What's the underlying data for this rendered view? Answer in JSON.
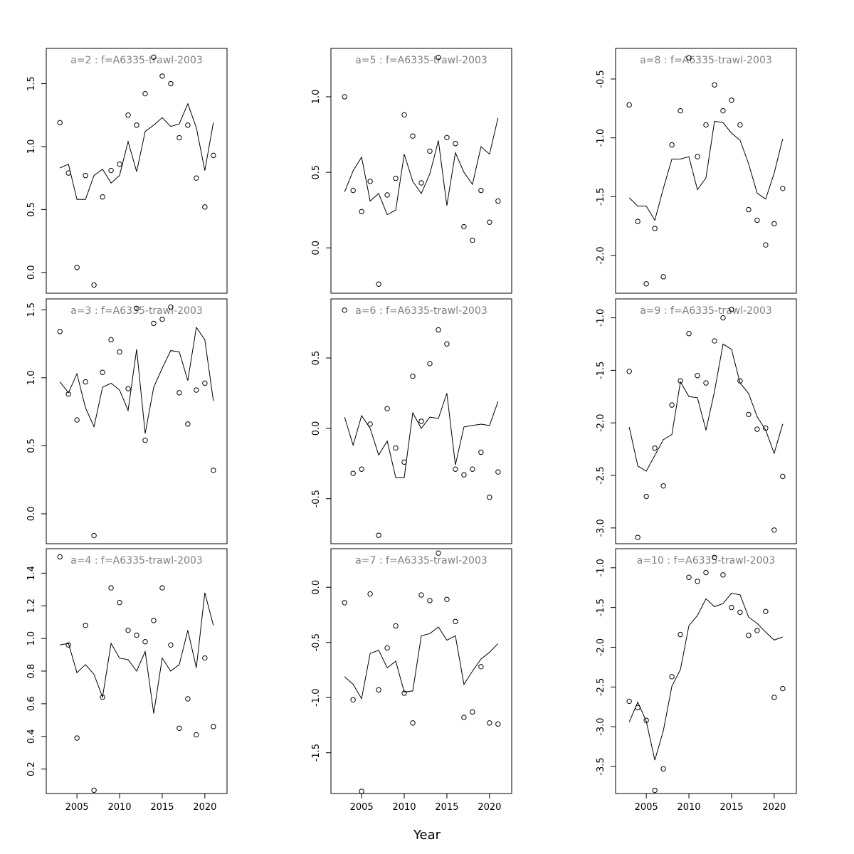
{
  "chart_data": {
    "type": "scatter",
    "xlabel": "Year",
    "years": [
      2003,
      2004,
      2005,
      2006,
      2007,
      2008,
      2009,
      2010,
      2011,
      2012,
      2013,
      2014,
      2015,
      2016,
      2017,
      2018,
      2019,
      2020,
      2021
    ],
    "x_ticks": [
      2005,
      2010,
      2015,
      2020
    ],
    "xlim": [
      2001.4,
      2022.6
    ],
    "style": {
      "line_color": "#000000",
      "point_color": "#000000",
      "title_color": "#808080"
    },
    "panels": [
      {
        "title": "a=2  :  f=A6335-trawl-2003",
        "ylim": [
          -0.165,
          1.78
        ],
        "yticks": [
          0.0,
          0.5,
          1.0,
          1.5
        ],
        "tick_labels": [
          "0.0",
          "0.5",
          "1.0",
          "1.5"
        ],
        "series": [
          {
            "type": "line",
            "values": [
              0.83,
              0.86,
              0.58,
              0.58,
              0.77,
              0.82,
              0.71,
              0.77,
              1.04,
              0.8,
              1.12,
              1.17,
              1.23,
              1.16,
              1.18,
              1.34,
              1.15,
              0.81,
              1.19
            ]
          },
          {
            "type": "points",
            "values": [
              1.19,
              0.79,
              0.04,
              0.77,
              -0.1,
              0.6,
              0.81,
              0.86,
              1.25,
              1.17,
              1.42,
              1.71,
              1.56,
              1.5,
              1.07,
              1.17,
              0.75,
              0.52,
              0.93
            ]
          }
        ]
      },
      {
        "title": "a=5  :  f=A6335-trawl-2003",
        "ylim": [
          -0.3,
          1.32
        ],
        "yticks": [
          0.0,
          0.5,
          1.0
        ],
        "tick_labels": [
          "0.0",
          "0.5",
          "1.0"
        ],
        "series": [
          {
            "type": "line",
            "values": [
              0.37,
              0.51,
              0.6,
              0.31,
              0.36,
              0.22,
              0.25,
              0.62,
              0.44,
              0.36,
              0.49,
              0.71,
              0.28,
              0.63,
              0.5,
              0.42,
              0.67,
              0.62,
              0.86
            ]
          },
          {
            "type": "points",
            "values": [
              1.0,
              0.38,
              0.24,
              0.44,
              -0.24,
              0.35,
              0.46,
              0.88,
              0.74,
              0.43,
              0.64,
              1.26,
              0.73,
              0.69,
              0.14,
              0.05,
              0.38,
              0.17,
              0.31
            ]
          }
        ]
      },
      {
        "title": "a=8  :  f=A6335-trawl-2003",
        "ylim": [
          -2.32,
          -0.24
        ],
        "yticks": [
          -2.0,
          -1.5,
          -1.0,
          -0.5
        ],
        "tick_labels": [
          "-2.0",
          "-1.5",
          "-1.0",
          "-0.5"
        ],
        "series": [
          {
            "type": "line",
            "values": [
              -1.51,
              -1.58,
              -1.58,
              -1.7,
              -1.43,
              -1.18,
              -1.18,
              -1.16,
              -1.44,
              -1.34,
              -0.86,
              -0.87,
              -0.96,
              -1.02,
              -1.22,
              -1.47,
              -1.52,
              -1.3,
              -1.01
            ]
          },
          {
            "type": "points",
            "values": [
              -0.72,
              -1.71,
              -2.24,
              -1.77,
              -2.18,
              -1.06,
              -0.77,
              -0.32,
              -1.16,
              -0.89,
              -0.55,
              -0.77,
              -0.68,
              -0.89,
              -1.61,
              -1.7,
              -1.91,
              -1.73,
              -1.43
            ]
          }
        ]
      },
      {
        "title": "a=3  :  f=A6335-trawl-2003",
        "ylim": [
          -0.22,
          1.58
        ],
        "yticks": [
          0.0,
          0.5,
          1.0,
          1.5
        ],
        "tick_labels": [
          "0.0",
          "0.5",
          "1.0",
          "1.5"
        ],
        "series": [
          {
            "type": "line",
            "values": [
              0.97,
              0.89,
              1.03,
              0.78,
              0.64,
              0.93,
              0.96,
              0.91,
              0.76,
              1.21,
              0.59,
              0.93,
              1.07,
              1.2,
              1.19,
              0.98,
              1.37,
              1.28,
              0.83
            ]
          },
          {
            "type": "points",
            "values": [
              1.34,
              0.88,
              0.69,
              0.97,
              -0.16,
              1.04,
              1.28,
              1.19,
              0.92,
              1.51,
              0.54,
              1.4,
              1.43,
              1.52,
              0.89,
              0.66,
              0.91,
              0.96,
              0.32
            ]
          }
        ]
      },
      {
        "title": "a=6  :  f=A6335-trawl-2003",
        "ylim": [
          -0.82,
          0.92
        ],
        "yticks": [
          -0.5,
          0.0,
          0.5
        ],
        "tick_labels": [
          "-0.5",
          "0.0",
          "0.5"
        ],
        "series": [
          {
            "type": "line",
            "values": [
              0.08,
              -0.12,
              0.09,
              0.0,
              -0.19,
              -0.09,
              -0.35,
              -0.35,
              0.11,
              0.0,
              0.08,
              0.07,
              0.25,
              -0.26,
              0.01,
              0.02,
              0.03,
              0.02,
              0.19
            ]
          },
          {
            "type": "points",
            "values": [
              0.84,
              -0.32,
              -0.29,
              0.03,
              -0.76,
              0.14,
              -0.14,
              -0.24,
              0.37,
              0.05,
              0.46,
              0.7,
              0.6,
              -0.29,
              -0.33,
              -0.29,
              -0.17,
              -0.49,
              -0.31
            ]
          }
        ]
      },
      {
        "title": "a=9  :  f=A6335-trawl-2003",
        "ylim": [
          -3.15,
          -0.82
        ],
        "yticks": [
          -3.0,
          -2.5,
          -2.0,
          -1.5,
          -1.0
        ],
        "tick_labels": [
          "-3.0",
          "-2.5",
          "-2.0",
          "-1.5",
          "-1.0"
        ],
        "series": [
          {
            "type": "line",
            "values": [
              -2.04,
              -2.41,
              -2.46,
              -2.31,
              -2.16,
              -2.11,
              -1.61,
              -1.75,
              -1.76,
              -2.07,
              -1.7,
              -1.25,
              -1.3,
              -1.62,
              -1.72,
              -1.94,
              -2.07,
              -2.29,
              -2.01
            ]
          },
          {
            "type": "points",
            "values": [
              -1.51,
              -3.09,
              -2.7,
              -2.24,
              -2.6,
              -1.83,
              -1.6,
              -1.15,
              -1.55,
              -1.62,
              -1.22,
              -1.0,
              -0.92,
              -1.6,
              -1.92,
              -2.06,
              -2.05,
              -3.02,
              -2.51
            ]
          }
        ]
      },
      {
        "title": "a=4  :  f=A6335-trawl-2003",
        "ylim": [
          0.05,
          1.55
        ],
        "yticks": [
          0.2,
          0.4,
          0.6,
          0.8,
          1.0,
          1.2,
          1.4
        ],
        "tick_labels": [
          "0.2",
          "0.4",
          "0.6",
          "0.8",
          "1.0",
          "1.2",
          "1.4"
        ],
        "series": [
          {
            "type": "line",
            "values": [
              0.96,
              0.97,
              0.79,
              0.84,
              0.78,
              0.64,
              0.97,
              0.88,
              0.87,
              0.8,
              0.92,
              0.54,
              0.88,
              0.8,
              0.84,
              1.05,
              0.82,
              1.28,
              1.08
            ]
          },
          {
            "type": "points",
            "values": [
              1.5,
              0.96,
              0.39,
              1.08,
              0.07,
              0.64,
              1.31,
              1.22,
              1.05,
              1.02,
              0.98,
              1.11,
              1.31,
              0.96,
              0.45,
              0.63,
              0.41,
              0.88,
              0.46
            ]
          }
        ]
      },
      {
        "title": "a=7  :  f=A6335-trawl-2003",
        "ylim": [
          -1.87,
          0.35
        ],
        "yticks": [
          -1.5,
          -1.0,
          -0.5,
          0.0
        ],
        "tick_labels": [
          "-1.5",
          "-1.0",
          "-0.5",
          "0.0"
        ],
        "series": [
          {
            "type": "line",
            "values": [
              -0.81,
              -0.88,
              -1.01,
              -0.6,
              -0.57,
              -0.73,
              -0.67,
              -0.95,
              -0.94,
              -0.44,
              -0.42,
              -0.36,
              -0.48,
              -0.44,
              -0.88,
              -0.76,
              -0.65,
              -0.59,
              -0.51
            ]
          },
          {
            "type": "points",
            "values": [
              -0.14,
              -1.02,
              -1.85,
              -0.06,
              -0.93,
              -0.55,
              -0.35,
              -0.96,
              -1.23,
              -0.07,
              -0.12,
              0.31,
              -0.11,
              -0.31,
              -1.18,
              -1.13,
              -0.72,
              -1.23,
              -1.24
            ]
          }
        ]
      },
      {
        "title": "a=10  :  f=A6335-trawl-2003",
        "ylim": [
          -3.84,
          -0.76
        ],
        "yticks": [
          -3.5,
          -3.0,
          -2.5,
          -2.0,
          -1.5,
          -1.0
        ],
        "tick_labels": [
          "-3.5",
          "-3.0",
          "-2.5",
          "-2.0",
          "-1.5",
          "-1.0"
        ],
        "series": [
          {
            "type": "line",
            "values": [
              -2.94,
              -2.69,
              -2.93,
              -3.42,
              -3.05,
              -2.49,
              -2.28,
              -1.73,
              -1.6,
              -1.39,
              -1.49,
              -1.45,
              -1.32,
              -1.34,
              -1.62,
              -1.7,
              -1.81,
              -1.91,
              -1.87
            ]
          },
          {
            "type": "points",
            "values": [
              -2.68,
              -2.76,
              -2.92,
              -3.8,
              -3.53,
              -2.37,
              -1.84,
              -1.12,
              -1.17,
              -1.06,
              -0.87,
              -1.09,
              -1.5,
              -1.56,
              -1.85,
              -1.79,
              -1.55,
              -2.63,
              -2.52
            ]
          }
        ]
      }
    ]
  }
}
